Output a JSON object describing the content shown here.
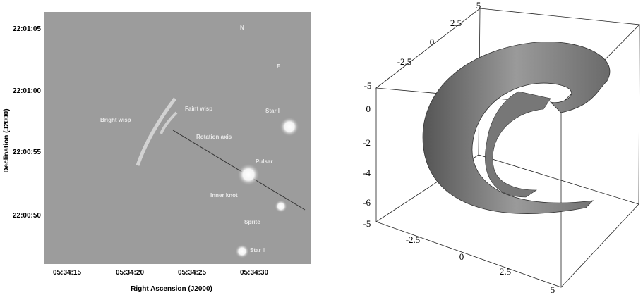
{
  "left_panel": {
    "y_axis_label": "Declination (J2000)",
    "y_tick_labels": [
      "22:01:05",
      "22:01:00",
      "22:00:55",
      "22:00:50"
    ],
    "x_axis_label": "Right Ascension (J2000)",
    "x_tick_labels": [
      "05:34:15",
      "05:34:20",
      "05:34:25",
      "05:34:30"
    ],
    "annotations": [
      "N",
      "E",
      "Bright wisp",
      "Faint wisp",
      "Rotation axis",
      "Star I",
      "Pulsar",
      "Inner knot",
      "Sprite",
      "Star II"
    ]
  },
  "right_panel": {
    "top_axis_labels": [
      "5",
      "2.5",
      "0",
      "-2.5",
      "-5"
    ],
    "vertical_axis_labels": [
      "0",
      "-2",
      "-4",
      "-6"
    ],
    "bottom_axis_labels": [
      "-5",
      "-2.5",
      "0",
      "2.5",
      "5"
    ]
  }
}
